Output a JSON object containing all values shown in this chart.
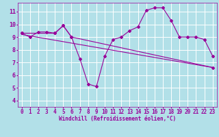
{
  "xlabel": "Windchill (Refroidissement éolien,°C)",
  "background_color": "#b2e0e8",
  "grid_color": "#ffffff",
  "line_color": "#990099",
  "xlim": [
    -0.5,
    23.5
  ],
  "ylim": [
    3.5,
    11.7
  ],
  "xticks": [
    0,
    1,
    2,
    3,
    4,
    5,
    6,
    7,
    8,
    9,
    10,
    11,
    12,
    13,
    14,
    15,
    16,
    17,
    18,
    19,
    20,
    21,
    22,
    23
  ],
  "yticks": [
    4,
    5,
    6,
    7,
    8,
    9,
    10,
    11
  ],
  "series1_x": [
    0,
    1,
    2,
    3,
    4,
    5,
    6,
    7,
    8,
    9,
    10,
    11,
    12,
    13,
    14,
    15,
    16,
    17,
    18,
    19,
    20,
    21,
    22,
    23
  ],
  "series1_y": [
    9.3,
    9.0,
    9.4,
    9.4,
    9.3,
    9.9,
    9.0,
    7.3,
    5.3,
    5.1,
    7.5,
    8.8,
    9.0,
    9.5,
    9.8,
    11.1,
    11.3,
    11.3,
    10.3,
    9.0,
    9.0,
    9.0,
    8.8,
    7.5
  ],
  "series2_x": [
    0,
    4,
    5,
    6,
    23
  ],
  "series2_y": [
    9.3,
    9.3,
    9.9,
    9.0,
    6.6
  ],
  "series3_x": [
    0,
    23
  ],
  "series3_y": [
    9.2,
    6.6
  ],
  "xlabel_fontsize": 5.5,
  "tick_fontsize": 5.5,
  "ytick_fontsize": 6.0
}
